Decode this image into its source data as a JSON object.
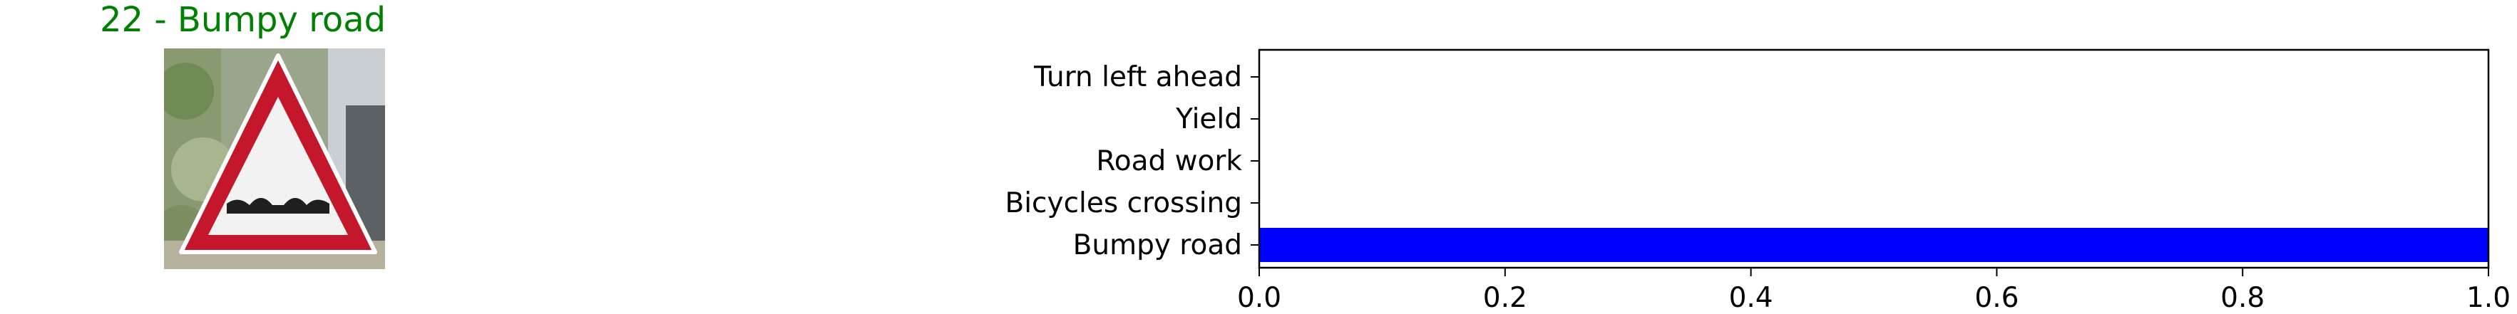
{
  "image_title": "22 - Bumpy road",
  "title_color": "#008000",
  "bar_color": "#0000ff",
  "chart_data": {
    "type": "bar",
    "orientation": "horizontal",
    "categories": [
      "Turn left ahead",
      "Yield",
      "Road work",
      "Bicycles crossing",
      "Bumpy road"
    ],
    "values": [
      0.0,
      0.0,
      0.0,
      0.0,
      1.0
    ],
    "xlim": [
      0,
      1
    ],
    "xticks": [
      "0.0",
      "0.2",
      "0.4",
      "0.6",
      "0.8",
      "1.0"
    ],
    "title": "",
    "xlabel": "",
    "ylabel": "",
    "grid": false
  }
}
